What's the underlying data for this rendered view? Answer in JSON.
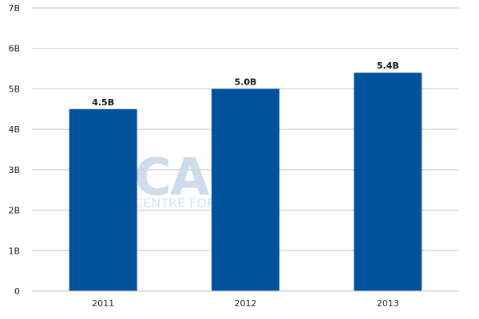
{
  "chart_data": {
    "type": "bar",
    "categories": [
      "2011",
      "2012",
      "2013"
    ],
    "values": [
      4.5,
      5.0,
      5.4
    ],
    "value_labels": [
      "4.5B",
      "5.0B",
      "5.4B"
    ],
    "title": "",
    "xlabel": "",
    "ylabel": "",
    "ylim": [
      0,
      7
    ],
    "yticks": [
      {
        "value": 0,
        "label": "0"
      },
      {
        "value": 1,
        "label": "1B"
      },
      {
        "value": 2,
        "label": "2B"
      },
      {
        "value": 3,
        "label": "3B"
      },
      {
        "value": 4,
        "label": "4B"
      },
      {
        "value": 5,
        "label": "5B"
      },
      {
        "value": 6,
        "label": "6B"
      },
      {
        "value": 7,
        "label": "7B"
      }
    ],
    "grid": true,
    "legend": "none",
    "bar_color": "#00529b",
    "grid_color": "#c6c6c6"
  },
  "watermark": {
    "logo": "CAPA",
    "subtitle": "CENTRE FOR AVIATION"
  }
}
